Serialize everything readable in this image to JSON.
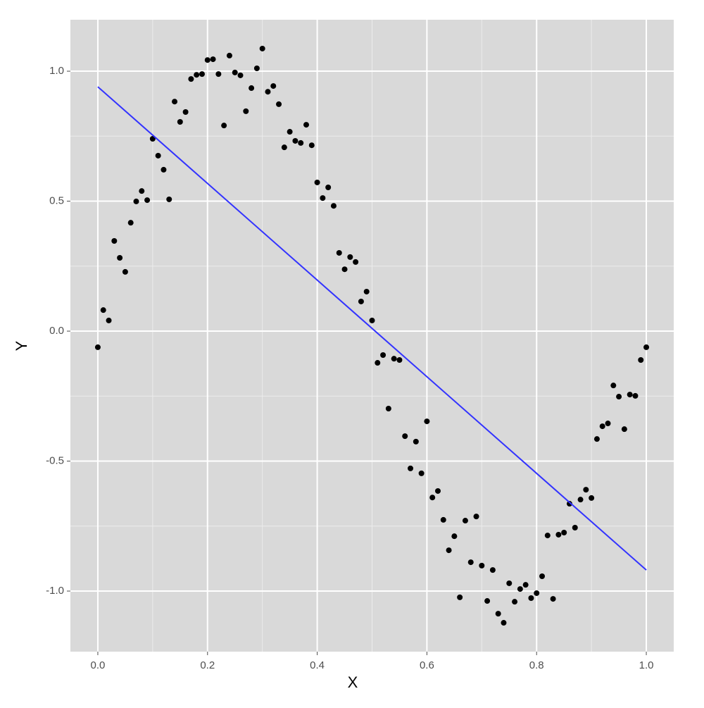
{
  "chart_data": {
    "type": "scatter",
    "x_label": "X",
    "y_label": "Y",
    "x": [
      0,
      0.01,
      0.02,
      0.03,
      0.04,
      0.05,
      0.06,
      0.07,
      0.08,
      0.09,
      0.1,
      0.11,
      0.12,
      0.13,
      0.14,
      0.15,
      0.16,
      0.17,
      0.18,
      0.19,
      0.2,
      0.21,
      0.22,
      0.23,
      0.24,
      0.25,
      0.26,
      0.27,
      0.28,
      0.29,
      0.3,
      0.31,
      0.32,
      0.33,
      0.34,
      0.35,
      0.36,
      0.37,
      0.38,
      0.39,
      0.4,
      0.41,
      0.42,
      0.43,
      0.44,
      0.45,
      0.46,
      0.47,
      0.48,
      0.49,
      0.5,
      0.51,
      0.52,
      0.53,
      0.54,
      0.55,
      0.56,
      0.57,
      0.58,
      0.59,
      0.6,
      0.61,
      0.62,
      0.63,
      0.64,
      0.65,
      0.66,
      0.67,
      0.68,
      0.69,
      0.7,
      0.71,
      0.72,
      0.73,
      0.74,
      0.75,
      0.76,
      0.77,
      0.78,
      0.79,
      0.8,
      0.81,
      0.82,
      0.83,
      0.84,
      0.85,
      0.86,
      0.87,
      0.88,
      0.89,
      0.9,
      0.91,
      0.92,
      0.93,
      0.94,
      0.95,
      0.96,
      0.97,
      0.98,
      0.99,
      1.0
    ],
    "values": [
      -0.062,
      0.081,
      0.041,
      0.347,
      0.282,
      0.228,
      0.417,
      0.499,
      0.539,
      0.504,
      0.74,
      0.675,
      0.621,
      0.507,
      0.883,
      0.805,
      0.843,
      0.97,
      0.986,
      0.989,
      1.043,
      1.046,
      0.989,
      0.791,
      1.06,
      0.995,
      0.984,
      0.846,
      0.935,
      1.011,
      1.087,
      0.921,
      0.943,
      0.873,
      0.707,
      0.767,
      0.732,
      0.724,
      0.794,
      0.715,
      0.572,
      0.512,
      0.553,
      0.482,
      0.301,
      0.238,
      0.285,
      0.266,
      0.114,
      0.152,
      0.041,
      -0.122,
      -0.092,
      -0.298,
      -0.106,
      -0.111,
      -0.404,
      -0.528,
      -0.425,
      -0.547,
      -0.347,
      -0.64,
      -0.615,
      -0.726,
      -0.843,
      -0.789,
      -1.024,
      -0.729,
      -0.889,
      -0.713,
      -0.902,
      -1.038,
      -0.919,
      -1.087,
      -1.122,
      -0.97,
      -1.041,
      -0.992,
      -0.976,
      -1.027,
      -1.008,
      -0.943,
      -0.786,
      -1.03,
      -0.783,
      -0.775,
      -0.664,
      -0.756,
      -0.648,
      -0.61,
      -0.642,
      -0.415,
      -0.366,
      -0.355,
      -0.209,
      -0.252,
      -0.377,
      -0.244,
      -0.249,
      -0.111,
      -0.062
    ],
    "color": "#000000",
    "fit": {
      "x": [
        0,
        1
      ],
      "values": [
        0.94,
        -0.919
      ],
      "color": "#3333ff"
    },
    "xlim": [
      -0.05,
      1.05
    ],
    "ylim": [
      -1.233,
      1.198
    ],
    "xticks": [
      {
        "value": 0,
        "label": "0.0"
      },
      0.2,
      0.4,
      0.6,
      0.8,
      {
        "value": 1,
        "label": "1.0"
      }
    ],
    "yticks": [
      {
        "value": -1,
        "label": "-1.0"
      },
      -0.5,
      {
        "value": 0,
        "label": "0.0"
      },
      0.5,
      {
        "value": 1,
        "label": "1.0"
      }
    ],
    "minor_xticks": [
      0.1,
      0.3,
      0.5,
      0.7,
      0.9
    ],
    "minor_yticks": [
      -0.75,
      -0.25,
      0.25,
      0.75
    ],
    "grid": true
  }
}
